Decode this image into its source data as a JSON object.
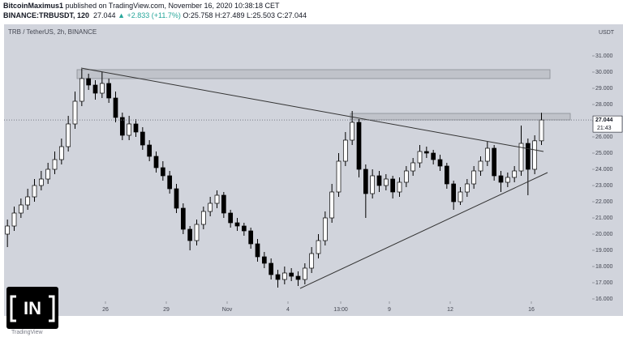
{
  "header": {
    "author": "BitcoinMaximus1",
    "published": "published on TradingView.com, November 16, 2020 10:38:18 CET",
    "symbol": "BINANCE:TRBUSDT, 120",
    "price": "27.044",
    "change": "▲ +2.833 (+11.7%)",
    "ohlc": "O:25.758 H:27.489 L:25.503 C:27.044"
  },
  "chart_data": {
    "type": "candlestick",
    "title": "TRB / TetherUS, 2h, BINANCE",
    "y_unit": "USDT",
    "last_price_label": "27.044",
    "countdown": "21:43",
    "logo": "IN",
    "watermark": "TradingView",
    "up_color": "#ffffff",
    "down_color": "#000000",
    "wick_color": "#000000",
    "open": [
      20.0,
      20.5,
      21.3,
      21.8,
      22.3,
      23.0,
      23.4,
      24.0,
      24.6,
      25.4,
      26.8,
      28.2,
      29.6,
      29.2,
      28.7,
      29.3,
      28.4,
      27.2,
      26.1,
      26.8,
      26.3,
      25.5,
      24.8,
      24.1,
      23.6,
      22.8,
      21.6,
      20.3,
      19.6,
      20.6,
      21.4,
      21.9,
      22.4,
      21.3,
      20.7,
      20.5,
      20.2,
      19.4,
      18.6,
      18.2,
      17.5,
      17.2,
      17.6,
      17.4,
      17.2,
      17.9,
      18.8,
      19.6,
      21.0,
      22.6,
      24.5,
      25.8,
      26.9,
      24.0,
      22.5,
      23.6,
      23.0,
      23.4,
      22.6,
      23.2,
      23.9,
      24.4,
      25.1,
      25.0,
      24.6,
      24.2,
      23.1,
      22.0,
      22.6,
      23.1,
      23.9,
      24.5,
      25.3,
      23.6,
      23.2,
      23.5,
      23.9,
      25.6,
      24.0,
      25.758
    ],
    "high": [
      20.9,
      21.7,
      22.2,
      22.8,
      23.4,
      23.9,
      24.4,
      25.1,
      25.9,
      27.3,
      28.8,
      30.2,
      29.9,
      29.5,
      30.0,
      29.6,
      28.8,
      27.5,
      27.3,
      27.1,
      26.6,
      25.8,
      25.1,
      24.5,
      23.9,
      23.1,
      21.9,
      20.5,
      20.9,
      21.7,
      22.3,
      22.7,
      22.6,
      21.5,
      21.0,
      20.7,
      20.4,
      19.7,
      18.9,
      18.5,
      17.8,
      18.0,
      17.9,
      17.7,
      18.2,
      19.2,
      20.0,
      21.4,
      23.1,
      25.0,
      26.3,
      27.6,
      27.1,
      24.3,
      24.0,
      23.9,
      23.7,
      23.6,
      23.5,
      24.2,
      24.7,
      25.5,
      25.4,
      25.2,
      24.9,
      24.4,
      23.3,
      22.9,
      23.4,
      24.2,
      24.8,
      25.7,
      25.5,
      23.9,
      23.8,
      24.2,
      26.7,
      25.9,
      26.1,
      27.489
    ],
    "low": [
      19.2,
      20.2,
      21.0,
      21.5,
      22.0,
      22.7,
      23.1,
      23.7,
      24.3,
      25.1,
      26.5,
      27.9,
      28.9,
      28.3,
      28.4,
      28.1,
      26.9,
      25.8,
      25.8,
      26.0,
      25.2,
      24.5,
      23.8,
      23.3,
      22.5,
      21.3,
      20.0,
      19.0,
      19.3,
      20.3,
      21.1,
      21.6,
      21.0,
      20.4,
      20.2,
      19.9,
      19.1,
      18.3,
      17.9,
      17.2,
      16.7,
      16.9,
      17.1,
      16.8,
      16.9,
      17.6,
      18.5,
      19.3,
      20.7,
      22.3,
      24.2,
      25.5,
      23.5,
      21.0,
      22.2,
      22.6,
      22.7,
      22.2,
      22.3,
      22.9,
      23.6,
      24.1,
      24.7,
      24.3,
      23.9,
      22.8,
      21.5,
      21.8,
      22.3,
      22.8,
      23.6,
      24.2,
      23.3,
      22.6,
      22.9,
      23.2,
      23.6,
      22.4,
      23.7,
      25.503
    ],
    "close": [
      20.5,
      21.3,
      21.8,
      22.3,
      23.0,
      23.4,
      24.0,
      24.6,
      25.4,
      26.8,
      28.2,
      29.6,
      29.2,
      28.7,
      29.3,
      28.4,
      27.2,
      26.1,
      26.8,
      26.3,
      25.5,
      24.8,
      24.1,
      23.6,
      22.8,
      21.6,
      20.3,
      19.6,
      20.6,
      21.4,
      21.9,
      22.4,
      21.3,
      20.7,
      20.5,
      20.2,
      19.4,
      18.6,
      18.2,
      17.5,
      17.2,
      17.6,
      17.4,
      17.2,
      17.9,
      18.8,
      19.6,
      21.0,
      22.6,
      24.5,
      25.8,
      26.9,
      24.0,
      22.5,
      23.6,
      23.0,
      23.4,
      22.6,
      23.2,
      23.9,
      24.4,
      25.1,
      25.0,
      24.6,
      24.2,
      23.1,
      22.0,
      22.6,
      23.1,
      23.9,
      24.5,
      25.3,
      23.6,
      23.2,
      23.5,
      23.9,
      25.6,
      24.0,
      25.758,
      27.044
    ],
    "xlim": [
      0,
      87
    ],
    "xticks": [
      {
        "value": 15,
        "label": "26"
      },
      {
        "value": 24,
        "label": "29"
      },
      {
        "value": 33,
        "label": "Nov"
      },
      {
        "value": 42,
        "label": "4"
      },
      {
        "value": 49.8,
        "label": "13:00"
      },
      {
        "value": 57,
        "label": "9"
      },
      {
        "value": 66,
        "label": "12"
      },
      {
        "value": 78,
        "label": "16"
      }
    ],
    "ylim": [
      15.85,
      32.95
    ],
    "yticks": [
      {
        "value": 16,
        "label": "16.000"
      },
      {
        "value": 17,
        "label": "17.000"
      },
      {
        "value": 18,
        "label": "18.000"
      },
      {
        "value": 19,
        "label": "19.000"
      },
      {
        "value": 20,
        "label": "20.000"
      },
      {
        "value": 21,
        "label": "21.000"
      },
      {
        "value": 22,
        "label": "22.000"
      },
      {
        "value": 23,
        "label": "23.000"
      },
      {
        "value": 24,
        "label": "24.000"
      },
      {
        "value": 25,
        "label": "25.000"
      },
      {
        "value": 26,
        "label": "26.000"
      },
      {
        "value": 27,
        "label": "27.000"
      },
      {
        "value": 28,
        "label": "28.000"
      },
      {
        "value": 29,
        "label": "29.000"
      },
      {
        "value": 30,
        "label": "30.000"
      },
      {
        "value": 31,
        "label": "31.000"
      }
    ],
    "last_price": 27.044
  }
}
